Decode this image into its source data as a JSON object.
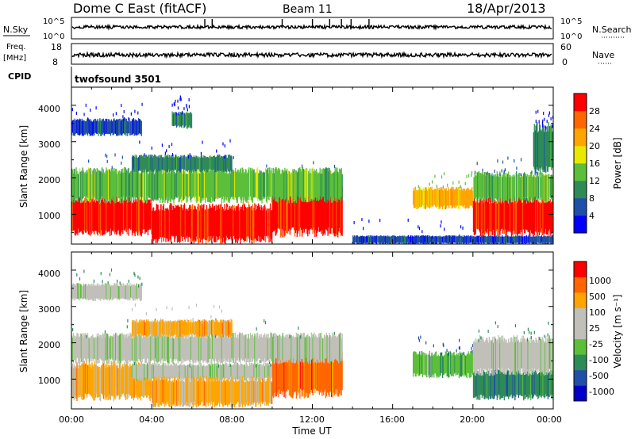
{
  "header": {
    "radar_title": "Dome C East (fitACF)",
    "beam": "Beam 11",
    "date": "18/Apr/2013"
  },
  "summary_panel": {
    "nsky_label": "N.Sky",
    "nsky_ticks": [
      "10^5",
      "10^0"
    ],
    "nsearch_label": "N.Search",
    "nsearch_ticks": [
      "10^5",
      "10^0"
    ],
    "freq_label": "Freq.",
    "freq_unit": "[MHz]",
    "freq_ticks": [
      "18",
      "8"
    ],
    "nave_label": "Nave",
    "nave_ticks": [
      "60",
      "0"
    ],
    "cpid_label": "CPID",
    "cpid_value": "twofsound 3501"
  },
  "colors": {
    "power": [
      "#0000ff",
      "#1f4fa8",
      "#2e8b57",
      "#5cbf3a",
      "#e8e800",
      "#ffa500",
      "#ff6600",
      "#ff0000"
    ],
    "velocity": [
      "#0000c8",
      "#1f4fa8",
      "#2e8b57",
      "#5cbf3a",
      "#c0c0b8",
      "#c0c0b8",
      "#ffa500",
      "#ff6600",
      "#ff0000"
    ]
  },
  "chart_data": [
    {
      "type": "heatmap",
      "name": "power-panel",
      "ylabel": "Slant Range [km]",
      "x_range_hours": [
        0,
        24
      ],
      "ylim": [
        180,
        4500
      ],
      "y_ticks": [
        "1000",
        "2000",
        "3000",
        "4000"
      ],
      "colorbar": {
        "label": "Power [dB]",
        "ticks": [
          "4",
          "8",
          "12",
          "16",
          "20",
          "24",
          "28"
        ]
      },
      "bands": [
        {
          "t_start": 0.0,
          "t_end": 4.0,
          "r_lo": 500,
          "r_hi": 1400,
          "level": 7
        },
        {
          "t_start": 4.0,
          "t_end": 10.0,
          "r_lo": 300,
          "r_hi": 1200,
          "level": 7
        },
        {
          "t_start": 10.0,
          "t_end": 13.5,
          "r_lo": 500,
          "r_hi": 1700,
          "level": 7
        },
        {
          "t_start": 0.0,
          "t_end": 13.5,
          "r_lo": 1400,
          "r_hi": 2200,
          "level": 3
        },
        {
          "t_start": 3.0,
          "t_end": 8.0,
          "r_lo": 2200,
          "r_hi": 2600,
          "level": 2
        },
        {
          "t_start": 0.0,
          "t_end": 3.5,
          "r_lo": 3200,
          "r_hi": 3600,
          "level": 1
        },
        {
          "t_start": 5.0,
          "t_end": 6.0,
          "r_lo": 3400,
          "r_hi": 3800,
          "level": 2
        },
        {
          "t_start": 14.0,
          "t_end": 24.0,
          "r_lo": 200,
          "r_hi": 400,
          "level": 1
        },
        {
          "t_start": 17.0,
          "t_end": 20.0,
          "r_lo": 1200,
          "r_hi": 1700,
          "level": 5
        },
        {
          "t_start": 20.0,
          "t_end": 24.0,
          "r_lo": 500,
          "r_hi": 1400,
          "level": 7
        },
        {
          "t_start": 20.0,
          "t_end": 24.0,
          "r_lo": 1400,
          "r_hi": 2100,
          "level": 3
        },
        {
          "t_start": 23.0,
          "t_end": 24.0,
          "r_lo": 2200,
          "r_hi": 3400,
          "level": 2
        }
      ]
    },
    {
      "type": "heatmap",
      "name": "velocity-panel",
      "ylabel": "Slant Range [km]",
      "xlabel": "Time UT",
      "x_ticks": [
        "00:00",
        "04:00",
        "08:00",
        "12:00",
        "16:00",
        "20:00",
        "00:00"
      ],
      "x_range_hours": [
        0,
        24
      ],
      "ylim": [
        180,
        4500
      ],
      "y_ticks": [
        "1000",
        "2000",
        "3000",
        "4000"
      ],
      "colorbar": {
        "label": "Velocity [m s⁻¹]",
        "ticks": [
          "1000",
          "500",
          "100",
          "25",
          "-25",
          "-100",
          "-500",
          "-1000"
        ]
      },
      "bands": [
        {
          "t_start": 0.0,
          "t_end": 4.0,
          "r_lo": 500,
          "r_hi": 1400,
          "level": 6
        },
        {
          "t_start": 3.0,
          "t_end": 10.0,
          "r_lo": 1000,
          "r_hi": 1400,
          "level": 4
        },
        {
          "t_start": 4.0,
          "t_end": 10.0,
          "r_lo": 300,
          "r_hi": 1000,
          "level": 6
        },
        {
          "t_start": 10.0,
          "t_end": 13.5,
          "r_lo": 600,
          "r_hi": 1700,
          "level": 7
        },
        {
          "t_start": 0.0,
          "t_end": 13.5,
          "r_lo": 1500,
          "r_hi": 2200,
          "level": 4
        },
        {
          "t_start": 3.0,
          "t_end": 8.0,
          "r_lo": 2200,
          "r_hi": 2600,
          "level": 6
        },
        {
          "t_start": 0.0,
          "t_end": 3.5,
          "r_lo": 3200,
          "r_hi": 3600,
          "level": 4
        },
        {
          "t_start": 17.0,
          "t_end": 20.0,
          "r_lo": 1100,
          "r_hi": 1700,
          "level": 3
        },
        {
          "t_start": 20.0,
          "t_end": 24.0,
          "r_lo": 500,
          "r_hi": 1200,
          "level": 2
        },
        {
          "t_start": 20.0,
          "t_end": 24.0,
          "r_lo": 1200,
          "r_hi": 2100,
          "level": 4
        }
      ]
    }
  ]
}
